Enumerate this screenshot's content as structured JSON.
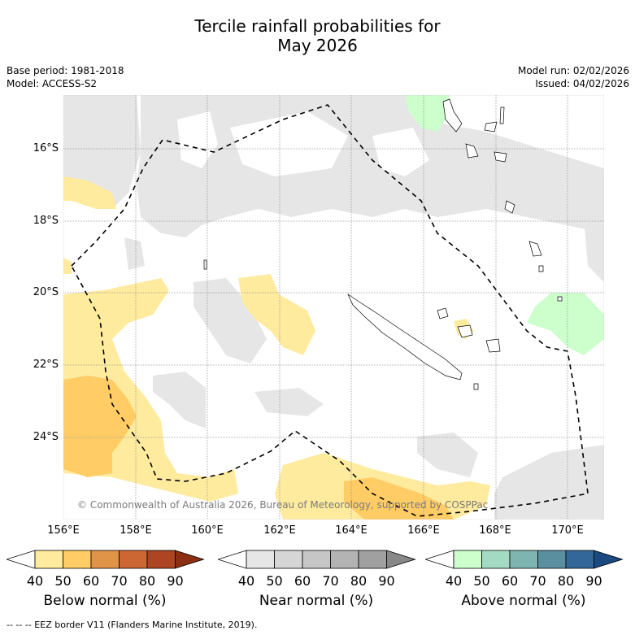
{
  "title_line1": "Tercile rainfall probabilities for",
  "title_line2": "May 2026",
  "meta_left": [
    "Base period: 1981-2018",
    "Model: ACCESS-S2"
  ],
  "meta_right": [
    "Model run: 02/02/2026",
    "Issued: 04/02/2026"
  ],
  "lat_labels": [
    "16°S",
    "18°S",
    "20°S",
    "22°S",
    "24°S"
  ],
  "lon_labels": [
    "156°E",
    "158°E",
    "160°E",
    "162°E",
    "164°E",
    "166°E",
    "168°E",
    "170°E"
  ],
  "copyright": "© Commonwealth of Australia 2026, Bureau of Meteorology, supported by COSPPac",
  "colorbars": [
    {
      "title": "Below normal (%)",
      "ticks": [
        "40",
        "50",
        "60",
        "70",
        "80",
        "90"
      ],
      "colors": [
        "#ffffff",
        "#ffeb9e",
        "#ffcc66",
        "#e09448",
        "#cc6633",
        "#ad4422",
        "#8c2e12"
      ]
    },
    {
      "title": "Near normal (%)",
      "ticks": [
        "40",
        "50",
        "60",
        "70",
        "80",
        "90"
      ],
      "colors": [
        "#ffffff",
        "#e6e6e6",
        "#d6d6d6",
        "#c6c6c6",
        "#b3b3b3",
        "#a0a0a0",
        "#888888"
      ]
    },
    {
      "title": "Above normal (%)",
      "ticks": [
        "40",
        "50",
        "60",
        "70",
        "80",
        "90"
      ],
      "colors": [
        "#ffffff",
        "#ccffcc",
        "#a3dbc2",
        "#7fb5b0",
        "#5a8fa0",
        "#336699",
        "#1a4a80"
      ]
    }
  ],
  "footer": "--  --  -- EEZ border V11 (Flanders Marine Institute, 2019)."
}
